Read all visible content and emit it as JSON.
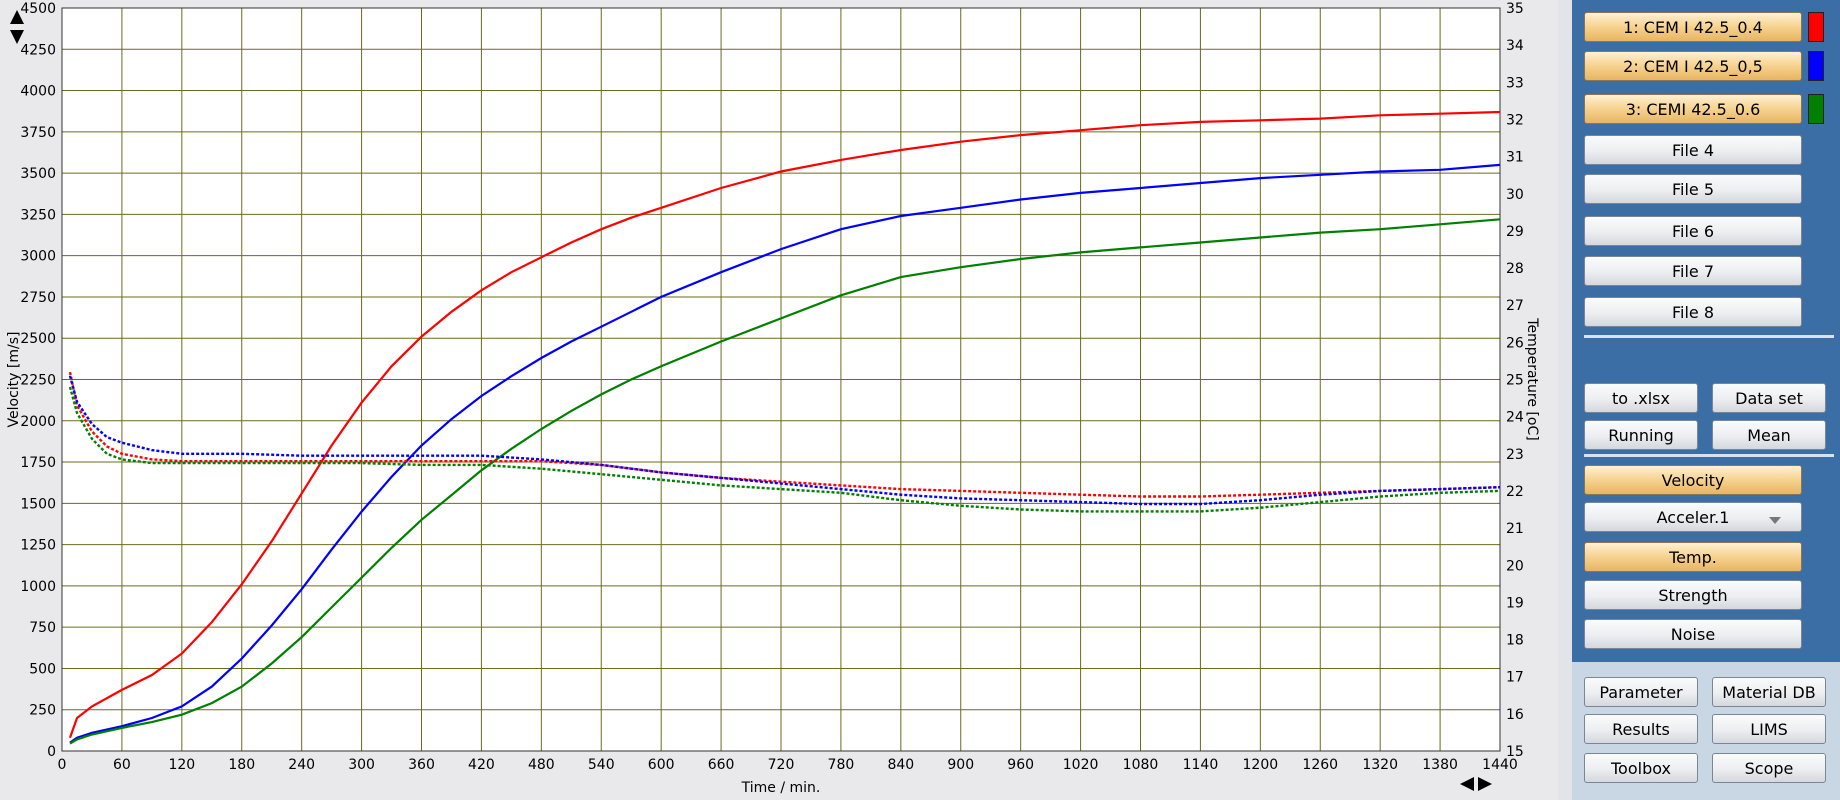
{
  "chart_data": {
    "type": "line",
    "xlabel": "Time / min.",
    "ylabel": "Velocity [m/s]",
    "y2label": "Temperature [oC]",
    "xlim": [
      0,
      1440
    ],
    "ylim": [
      0,
      4500
    ],
    "y2lim": [
      15,
      35
    ],
    "xticks": [
      0,
      60,
      120,
      180,
      240,
      300,
      360,
      420,
      480,
      540,
      600,
      660,
      720,
      780,
      840,
      900,
      960,
      1020,
      1080,
      1140,
      1200,
      1260,
      1320,
      1380,
      1440
    ],
    "yticks": [
      0,
      250,
      500,
      750,
      1000,
      1250,
      1500,
      1750,
      2000,
      2250,
      2500,
      2750,
      3000,
      3250,
      3500,
      3750,
      4000,
      4250,
      4500
    ],
    "y2ticks": [
      15,
      16,
      17,
      18,
      19,
      20,
      21,
      22,
      23,
      24,
      25,
      26,
      27,
      28,
      29,
      30,
      31,
      32,
      33,
      34,
      35
    ],
    "grid": true,
    "grid_color": "#6b6b1f",
    "plot_background": "#ffffff",
    "velocity_series": [
      {
        "name": "1: CEM I 42.5_0.4",
        "color": "#ff0000",
        "x": [
          8,
          15,
          30,
          60,
          90,
          120,
          150,
          180,
          210,
          240,
          270,
          300,
          330,
          360,
          390,
          420,
          450,
          480,
          510,
          540,
          570,
          600,
          660,
          720,
          780,
          840,
          900,
          960,
          1020,
          1080,
          1140,
          1200,
          1260,
          1320,
          1380,
          1440
        ],
        "y": [
          80,
          200,
          270,
          370,
          460,
          590,
          780,
          1010,
          1270,
          1560,
          1850,
          2110,
          2330,
          2510,
          2660,
          2790,
          2900,
          2990,
          3080,
          3160,
          3230,
          3290,
          3410,
          3510,
          3580,
          3640,
          3690,
          3730,
          3760,
          3790,
          3810,
          3820,
          3830,
          3850,
          3860,
          3870
        ]
      },
      {
        "name": "2: CEM I 42.5_0,5",
        "color": "#0000ff",
        "x": [
          8,
          15,
          30,
          60,
          90,
          120,
          150,
          180,
          210,
          240,
          270,
          300,
          330,
          360,
          390,
          420,
          450,
          480,
          510,
          540,
          570,
          600,
          660,
          720,
          780,
          840,
          900,
          960,
          1020,
          1080,
          1140,
          1200,
          1260,
          1320,
          1380,
          1440
        ],
        "y": [
          50,
          80,
          110,
          150,
          200,
          270,
          390,
          560,
          760,
          980,
          1220,
          1450,
          1660,
          1850,
          2010,
          2150,
          2270,
          2380,
          2480,
          2570,
          2660,
          2750,
          2900,
          3040,
          3160,
          3240,
          3290,
          3340,
          3380,
          3410,
          3440,
          3470,
          3490,
          3510,
          3520,
          3550
        ]
      },
      {
        "name": "3: CEMI 42.5_0.6",
        "color": "#008000",
        "x": [
          8,
          15,
          30,
          60,
          90,
          120,
          150,
          180,
          210,
          240,
          270,
          300,
          330,
          360,
          390,
          420,
          450,
          480,
          510,
          540,
          570,
          600,
          660,
          720,
          780,
          840,
          900,
          960,
          1020,
          1080,
          1140,
          1200,
          1260,
          1320,
          1380,
          1440
        ],
        "y": [
          45,
          70,
          100,
          140,
          175,
          220,
          290,
          390,
          530,
          690,
          870,
          1050,
          1230,
          1400,
          1550,
          1700,
          1830,
          1950,
          2060,
          2160,
          2250,
          2330,
          2480,
          2620,
          2760,
          2870,
          2930,
          2980,
          3020,
          3050,
          3080,
          3110,
          3140,
          3160,
          3190,
          3220
        ]
      }
    ],
    "temperature_series": [
      {
        "name": "1: CEM I 42.5_0.4",
        "color": "#ff0000",
        "x": [
          8,
          15,
          30,
          45,
          60,
          90,
          120,
          180,
          240,
          300,
          360,
          420,
          480,
          540,
          600,
          660,
          720,
          780,
          840,
          900,
          960,
          1020,
          1080,
          1140,
          1200,
          1260,
          1320,
          1380,
          1440
        ],
        "y": [
          25.2,
          24.3,
          23.6,
          23.2,
          23.0,
          22.85,
          22.8,
          22.8,
          22.8,
          22.8,
          22.8,
          22.8,
          22.8,
          22.7,
          22.5,
          22.35,
          22.25,
          22.15,
          22.05,
          22.0,
          21.95,
          21.9,
          21.85,
          21.85,
          21.9,
          21.95,
          22.0,
          22.05,
          22.1
        ]
      },
      {
        "name": "2: CEM I 42.5_0,5",
        "color": "#0000ff",
        "x": [
          8,
          15,
          30,
          45,
          60,
          90,
          120,
          180,
          240,
          300,
          360,
          420,
          480,
          540,
          600,
          660,
          720,
          780,
          840,
          900,
          960,
          1020,
          1080,
          1140,
          1200,
          1260,
          1320,
          1380,
          1440
        ],
        "y": [
          25.1,
          24.4,
          23.8,
          23.45,
          23.3,
          23.1,
          23.0,
          23.0,
          22.95,
          22.95,
          22.95,
          22.95,
          22.85,
          22.7,
          22.5,
          22.35,
          22.2,
          22.05,
          21.9,
          21.8,
          21.75,
          21.7,
          21.65,
          21.65,
          21.75,
          21.9,
          22.0,
          22.05,
          22.1
        ]
      },
      {
        "name": "3: CEMI 42.5_0.6",
        "color": "#008000",
        "x": [
          8,
          15,
          30,
          45,
          60,
          90,
          120,
          180,
          240,
          300,
          360,
          420,
          480,
          540,
          600,
          660,
          720,
          780,
          840,
          900,
          960,
          1020,
          1080,
          1140,
          1200,
          1260,
          1320,
          1380,
          1440
        ],
        "y": [
          24.8,
          24.1,
          23.4,
          23.0,
          22.85,
          22.75,
          22.75,
          22.75,
          22.75,
          22.75,
          22.7,
          22.7,
          22.6,
          22.45,
          22.3,
          22.15,
          22.05,
          21.95,
          21.75,
          21.6,
          21.5,
          21.45,
          21.45,
          21.45,
          21.55,
          21.7,
          21.85,
          21.95,
          22.0
        ]
      }
    ]
  },
  "file_buttons": [
    {
      "label": "1: CEM I 42.5_0.4",
      "active": true,
      "swatch": "#ff0000"
    },
    {
      "label": "2: CEM I 42.5_0,5",
      "active": true,
      "swatch": "#0000ff"
    },
    {
      "label": "3: CEMI 42.5_0.6",
      "active": true,
      "swatch": "#008000"
    },
    {
      "label": "File 4",
      "active": false
    },
    {
      "label": "File 5",
      "active": false
    },
    {
      "label": "File 6",
      "active": false
    },
    {
      "label": "File 7",
      "active": false
    },
    {
      "label": "File 8",
      "active": false
    }
  ],
  "export": {
    "xlsx": "to .xlsx",
    "dataset": "Data set",
    "running": "Running",
    "mean": "Mean"
  },
  "display": {
    "velocity": "Velocity",
    "acceler": "Acceler.1",
    "temp": "Temp.",
    "strength": "Strength",
    "noise": "Noise"
  },
  "tools": {
    "parameter": "Parameter",
    "material_db": "Material DB",
    "results": "Results",
    "lims": "LIMS",
    "toolbox": "Toolbox",
    "scope": "Scope"
  }
}
